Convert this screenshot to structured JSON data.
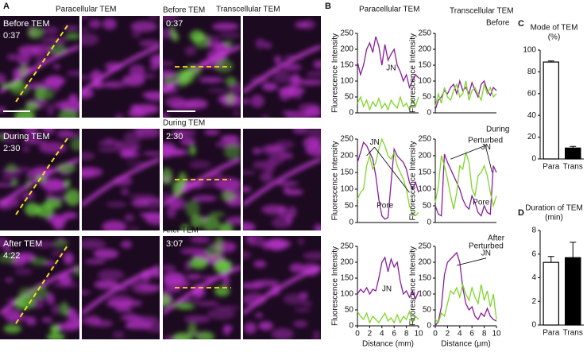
{
  "panel_a": {
    "label": "A",
    "headers": [
      "Paracellular TEM",
      "Transcellular TEM"
    ],
    "rows": [
      {
        "label_para": "Before TEM",
        "time_para": "0:37",
        "label_trans": "Before TEM",
        "time_trans": "0:37"
      },
      {
        "label_para": "During TEM",
        "time_para": "2:30",
        "label_trans": "During TEM",
        "time_trans": "2:30"
      },
      {
        "label_para": "After TEM",
        "time_para": "4:22",
        "label_trans": "After TEM",
        "time_trans": "3:07"
      }
    ]
  },
  "panel_b": {
    "label": "B",
    "headers": [
      "Paracellular TEM",
      "Transcellular TEM"
    ],
    "rows": [
      "Before",
      "During",
      "After"
    ]
  },
  "panel_c": {
    "label": "C"
  },
  "panel_d": {
    "label": "D"
  },
  "chart_data": [
    {
      "type": "line",
      "ylabel": "Fluorescence Intensity",
      "x": [
        0,
        0.5,
        1,
        1.5,
        2,
        2.5,
        3,
        3.5,
        4,
        4.5,
        5,
        5.5,
        6,
        6.5,
        7,
        7.5,
        8,
        8.5,
        9,
        9.5,
        10
      ],
      "xlim": [
        0,
        10
      ],
      "ylim": [
        0,
        250
      ],
      "yticks": [
        0,
        50,
        100,
        150,
        200,
        250
      ],
      "annotations": [
        "JN"
      ],
      "series": [
        {
          "color": "#8a1c9c",
          "values": [
            160,
            120,
            150,
            200,
            220,
            190,
            240,
            210,
            150,
            215,
            165,
            185,
            200,
            150,
            130,
            100,
            120,
            80,
            100,
            120,
            110
          ]
        },
        {
          "color": "#7fd62a",
          "values": [
            30,
            50,
            20,
            40,
            10,
            35,
            20,
            45,
            15,
            30,
            10,
            40,
            25,
            15,
            50,
            20,
            30,
            10,
            40,
            20,
            50
          ]
        }
      ]
    },
    {
      "type": "line",
      "ylabel": "Fluorescence Intensity",
      "x": [
        0,
        0.5,
        1,
        1.5,
        2,
        2.5,
        3,
        3.5,
        4,
        4.5,
        5,
        5.5,
        6,
        6.5,
        7,
        7.5,
        8,
        8.5,
        9,
        9.5,
        10
      ],
      "xlim": [
        0,
        10
      ],
      "ylim": [
        0,
        250
      ],
      "yticks": [
        0,
        50,
        100,
        150,
        200,
        250
      ],
      "annotations": [],
      "series": [
        {
          "color": "#8a1c9c",
          "values": [
            10,
            40,
            50,
            70,
            60,
            80,
            90,
            60,
            100,
            70,
            80,
            60,
            95,
            70,
            50,
            90,
            100,
            70,
            55,
            80,
            70
          ]
        },
        {
          "color": "#7fd62a",
          "values": [
            20,
            60,
            30,
            80,
            50,
            40,
            70,
            90,
            50,
            60,
            100,
            40,
            70,
            80,
            60,
            40,
            90,
            60,
            80,
            50,
            60
          ]
        }
      ]
    },
    {
      "type": "line",
      "ylabel": "Fluorescence Intensity",
      "x": [
        0,
        0.5,
        1,
        1.5,
        2,
        2.5,
        3,
        3.5,
        4,
        4.5,
        5,
        5.5,
        6,
        6.5,
        7,
        7.5,
        8,
        8.5,
        9,
        9.5,
        10
      ],
      "xlim": [
        0,
        10
      ],
      "ylim": [
        0,
        250
      ],
      "yticks": [
        0,
        50,
        100,
        150,
        200,
        250
      ],
      "annotations": [
        "JN",
        "Pore"
      ],
      "series": [
        {
          "color": "#8a1c9c",
          "values": [
            180,
            210,
            240,
            230,
            210,
            190,
            140,
            70,
            20,
            10,
            15,
            120,
            220,
            200,
            190,
            180,
            160,
            120,
            100,
            120,
            90
          ]
        },
        {
          "color": "#7fd62a",
          "values": [
            70,
            90,
            100,
            170,
            200,
            160,
            180,
            220,
            250,
            230,
            200,
            190,
            210,
            170,
            150,
            130,
            100,
            50,
            25,
            20,
            30
          ]
        }
      ]
    },
    {
      "type": "line",
      "ylabel": "Fluorescence Intensity",
      "x": [
        0,
        0.5,
        1,
        1.5,
        2,
        2.5,
        3,
        3.5,
        4,
        4.5,
        5,
        5.5,
        6,
        6.5,
        7,
        7.5,
        8,
        8.5,
        9,
        9.5,
        10
      ],
      "xlim": [
        0,
        10
      ],
      "ylim": [
        0,
        250
      ],
      "yticks": [
        0,
        50,
        100,
        150,
        200,
        250
      ],
      "annotations": [
        "Perturbed",
        "JN",
        "Pore"
      ],
      "series": [
        {
          "color": "#8a1c9c",
          "values": [
            50,
            25,
            20,
            205,
            180,
            160,
            140,
            120,
            100,
            70,
            50,
            40,
            80,
            60,
            30,
            20,
            50,
            30,
            25,
            170,
            150
          ]
        },
        {
          "color": "#7fd62a",
          "values": [
            60,
            110,
            200,
            170,
            130,
            80,
            40,
            90,
            170,
            160,
            210,
            180,
            100,
            80,
            140,
            150,
            170,
            140,
            90,
            50,
            80
          ]
        }
      ]
    },
    {
      "type": "line",
      "ylabel": "Fluorescence Intensity",
      "xlabel": "Distance (mm)",
      "x": [
        0,
        0.5,
        1,
        1.5,
        2,
        2.5,
        3,
        3.5,
        4,
        4.5,
        5,
        5.5,
        6,
        6.5,
        7,
        7.5,
        8,
        8.5,
        9,
        9.5,
        10
      ],
      "xlim": [
        0,
        10
      ],
      "ylim": [
        0,
        250
      ],
      "xticks": [
        0,
        2,
        4,
        6,
        8,
        10
      ],
      "yticks": [
        0,
        50,
        100,
        150,
        200,
        250
      ],
      "annotations": [
        "JN"
      ],
      "series": [
        {
          "color": "#8a1c9c",
          "values": [
            100,
            115,
            105,
            120,
            100,
            115,
            110,
            150,
            200,
            215,
            170,
            210,
            185,
            200,
            140,
            100,
            110,
            90,
            110,
            85,
            110
          ]
        },
        {
          "color": "#7fd62a",
          "values": [
            45,
            30,
            20,
            40,
            10,
            30,
            20,
            10,
            25,
            40,
            15,
            25,
            10,
            35,
            10,
            30,
            20,
            45,
            10,
            30,
            20
          ]
        }
      ]
    },
    {
      "type": "line",
      "ylabel": "Fluorescence Intensity",
      "xlabel": "Distance (μm)",
      "x": [
        0,
        0.5,
        1,
        1.5,
        2,
        2.5,
        3,
        3.5,
        4,
        4.5,
        5,
        5.5,
        6,
        6.5,
        7,
        7.5,
        8,
        8.5,
        9,
        9.5,
        10
      ],
      "xlim": [
        0,
        10
      ],
      "ylim": [
        0,
        250
      ],
      "xticks": [
        0,
        2,
        4,
        6,
        8,
        10
      ],
      "yticks": [
        0,
        50,
        100,
        150,
        200,
        250
      ],
      "annotations": [
        "Perturbed",
        "JN"
      ],
      "series": [
        {
          "color": "#8a1c9c",
          "values": [
            0,
            15,
            60,
            160,
            200,
            210,
            220,
            230,
            200,
            120,
            70,
            50,
            60,
            30,
            20,
            40,
            30,
            55,
            30,
            20,
            15
          ]
        },
        {
          "color": "#7fd62a",
          "values": [
            20,
            10,
            40,
            30,
            70,
            110,
            100,
            120,
            90,
            130,
            100,
            80,
            120,
            90,
            70,
            130,
            80,
            110,
            60,
            100,
            20
          ]
        }
      ]
    },
    {
      "type": "bar",
      "title": [
        "Mode of TEM",
        "(%)"
      ],
      "categories": [
        "Para",
        "Trans"
      ],
      "values": [
        89,
        10
      ],
      "errors": [
        1,
        1.5
      ],
      "colors": [
        "#ffffff",
        "#000000"
      ],
      "ylim": [
        0,
        100
      ],
      "yticks": [
        0,
        20,
        40,
        60,
        80,
        100
      ]
    },
    {
      "type": "bar",
      "title": [
        "Duration of TEM",
        "(min)"
      ],
      "categories": [
        "Para",
        "Trans"
      ],
      "values": [
        5.3,
        5.7
      ],
      "errors": [
        0.5,
        1.3
      ],
      "colors": [
        "#ffffff",
        "#000000"
      ],
      "ylim": [
        0,
        8
      ],
      "yticks": [
        0,
        2,
        4,
        6,
        8
      ]
    }
  ]
}
